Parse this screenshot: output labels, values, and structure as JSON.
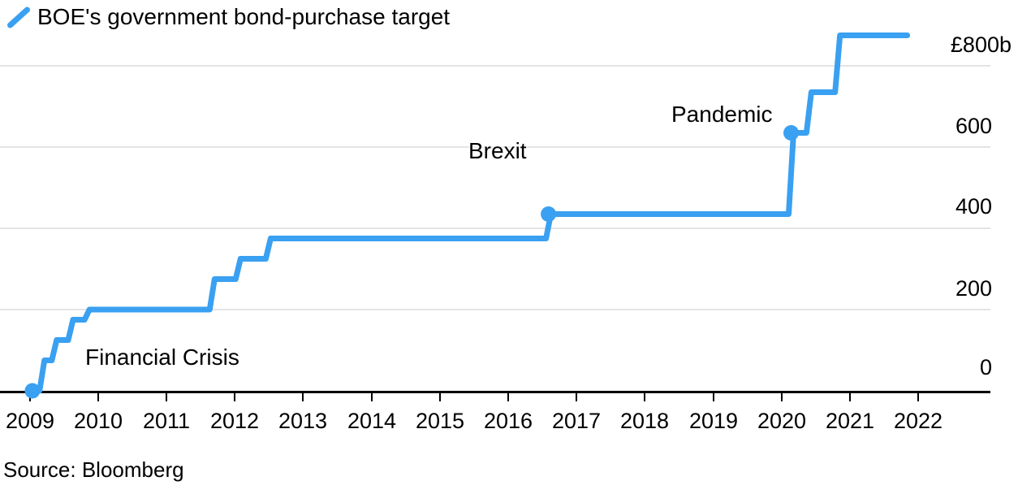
{
  "legend": {
    "icon": "line-slash-icon",
    "series_label": "BOE's government bond-purchase target"
  },
  "annotations": {
    "financial_crisis": "Financial Crisis",
    "brexit": "Brexit",
    "pandemic": "Pandemic"
  },
  "y_axis": {
    "labels": [
      "£800b",
      "600",
      "400",
      "200",
      "0"
    ]
  },
  "x_axis": {
    "labels": [
      "2009",
      "2010",
      "2011",
      "2012",
      "2013",
      "2014",
      "2015",
      "2016",
      "2017",
      "2018",
      "2019",
      "2020",
      "2021",
      "2022"
    ]
  },
  "source": "Source: Bloomberg",
  "colors": {
    "line": "#3AA0F1",
    "gridline": "#E4E4E4",
    "axis": "#000000",
    "text": "#000000"
  },
  "chart_data": {
    "type": "line",
    "subtype": "step",
    "title": "BOE's government bond-purchase target",
    "unit": "£ billion",
    "xlabel": "",
    "ylabel": "",
    "xlim": [
      2008.95,
      2022.8
    ],
    "ylim": [
      0,
      880
    ],
    "x_ticks": [
      2009,
      2010,
      2011,
      2012,
      2013,
      2014,
      2015,
      2016,
      2017,
      2018,
      2019,
      2020,
      2021,
      2022
    ],
    "y_ticks": [
      0,
      200,
      400,
      600,
      800
    ],
    "y_tick_labels": [
      "0",
      "200",
      "400",
      "600",
      "£800b"
    ],
    "grid": "horizontal",
    "legend_position": "top-left",
    "series": [
      {
        "name": "BOE's government bond-purchase target",
        "color": "#3AA0F1",
        "steps": [
          {
            "year": 2009.04,
            "value": 0
          },
          {
            "year": 2009.18,
            "value": 75
          },
          {
            "year": 2009.36,
            "value": 125
          },
          {
            "year": 2009.6,
            "value": 175
          },
          {
            "year": 2009.84,
            "value": 200
          },
          {
            "year": 2011.67,
            "value": 275
          },
          {
            "year": 2012.05,
            "value": 325
          },
          {
            "year": 2012.49,
            "value": 375
          },
          {
            "year": 2016.59,
            "value": 435
          },
          {
            "year": 2020.14,
            "value": 635
          },
          {
            "year": 2020.4,
            "value": 735
          },
          {
            "year": 2020.82,
            "value": 875
          }
        ],
        "end_year": 2021.84
      }
    ],
    "markers": [
      {
        "year": 2009.04,
        "value": 0,
        "label": "Financial Crisis"
      },
      {
        "year": 2016.59,
        "value": 435,
        "label": "Brexit"
      },
      {
        "year": 2020.14,
        "value": 635,
        "label": "Pandemic"
      }
    ]
  }
}
